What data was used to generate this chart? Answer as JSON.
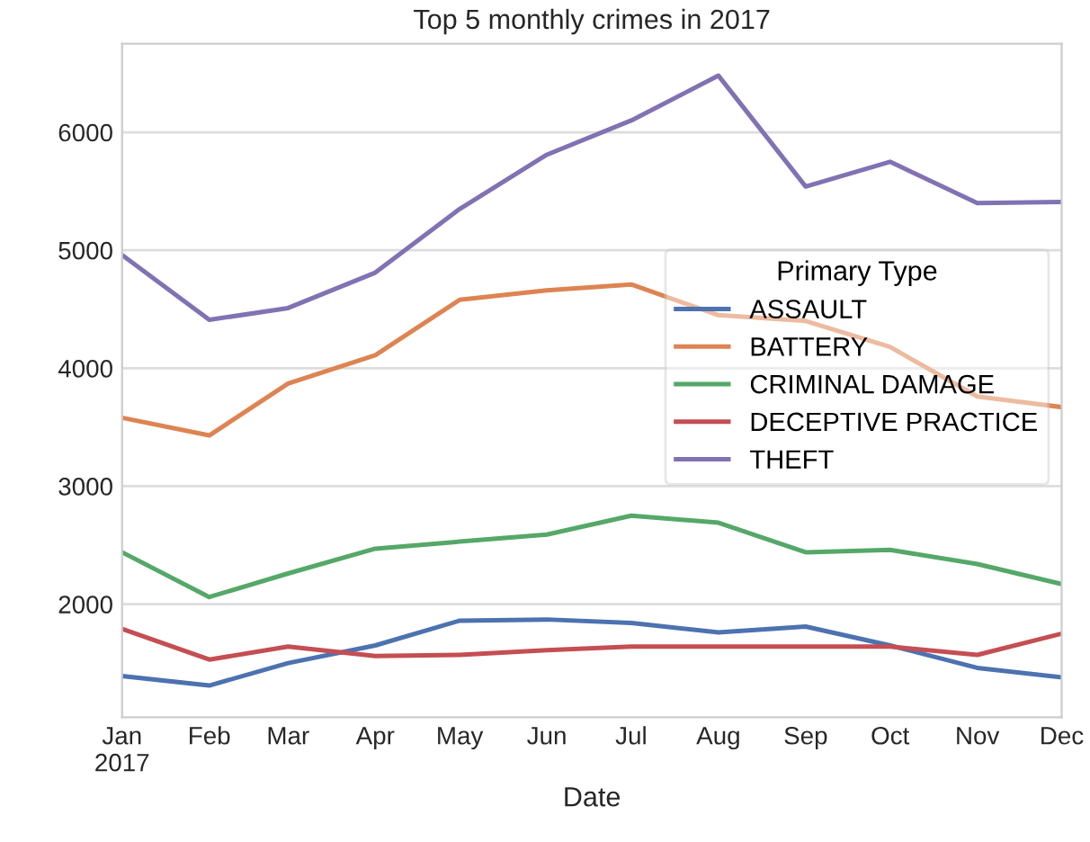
{
  "chart_data": {
    "type": "line",
    "title": "Top 5 monthly crimes in 2017",
    "xlabel": "Date",
    "legend_title": "Primary Type",
    "x": [
      "2017-01",
      "2017-02",
      "2017-03",
      "2017-04",
      "2017-05",
      "2017-06",
      "2017-07",
      "2017-08",
      "2017-09",
      "2017-10",
      "2017-11",
      "2017-12"
    ],
    "series": [
      {
        "name": "ASSAULT",
        "color": "#4c72b0",
        "values": [
          1390,
          1310,
          1500,
          1650,
          1860,
          1870,
          1840,
          1760,
          1810,
          1650,
          1460,
          1380
        ]
      },
      {
        "name": "BATTERY",
        "color": "#dd8452",
        "values": [
          3580,
          3430,
          3870,
          4110,
          4580,
          4660,
          4710,
          4450,
          4400,
          4180,
          3760,
          3670
        ]
      },
      {
        "name": "CRIMINAL DAMAGE",
        "color": "#55a868",
        "values": [
          2440,
          2060,
          2260,
          2470,
          2530,
          2590,
          2750,
          2690,
          2440,
          2460,
          2340,
          2170
        ]
      },
      {
        "name": "DECEPTIVE PRACTICE",
        "color": "#c44e52",
        "values": [
          1790,
          1530,
          1640,
          1560,
          1570,
          1610,
          1640,
          1640,
          1640,
          1640,
          1570,
          1750
        ]
      },
      {
        "name": "THEFT",
        "color": "#8172b3",
        "values": [
          4960,
          4410,
          4510,
          4810,
          5350,
          5810,
          6100,
          6480,
          5540,
          5750,
          5400,
          5410
        ]
      }
    ],
    "xlim": [
      "2017-01",
      "2017-12"
    ],
    "xticks": [
      {
        "value": "2017-01",
        "label": "Jan\n2017"
      },
      {
        "value": "2017-02",
        "label": "Feb"
      },
      {
        "value": "2017-03",
        "label": "Mar"
      },
      {
        "value": "2017-04",
        "label": "Apr"
      },
      {
        "value": "2017-05",
        "label": "May"
      },
      {
        "value": "2017-06",
        "label": "Jun"
      },
      {
        "value": "2017-07",
        "label": "Jul"
      },
      {
        "value": "2017-08",
        "label": "Aug"
      },
      {
        "value": "2017-09",
        "label": "Sep"
      },
      {
        "value": "2017-10",
        "label": "Oct"
      },
      {
        "value": "2017-11",
        "label": "Nov"
      },
      {
        "value": "2017-12",
        "label": "Dec"
      }
    ],
    "ylim": [
      1040,
      6750
    ],
    "yticks": [
      2000,
      3000,
      4000,
      5000,
      6000
    ],
    "grid": "y",
    "legend": "center right",
    "marker": "none",
    "line_style": "solid"
  }
}
